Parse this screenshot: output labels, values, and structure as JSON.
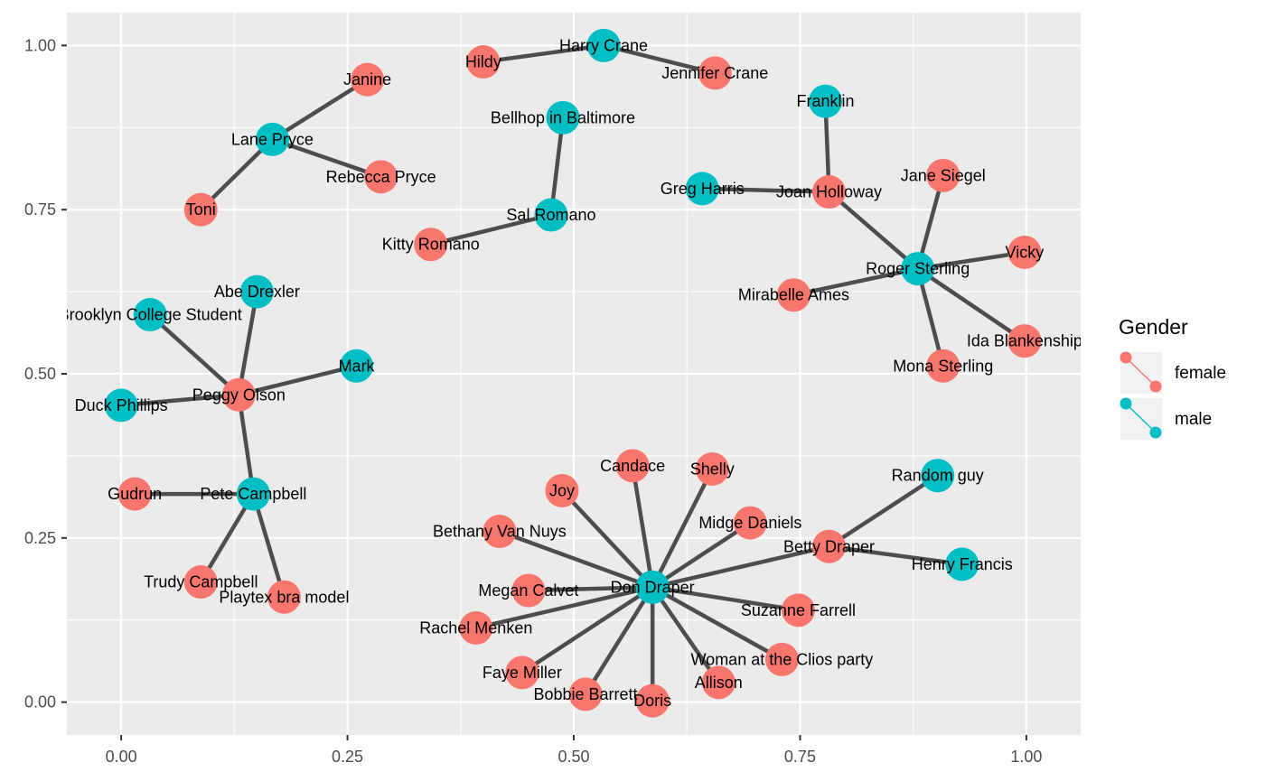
{
  "chart_data": {
    "type": "scatter",
    "subtype": "network",
    "title": "",
    "xlabel": "",
    "ylabel": "",
    "xlim": [
      -0.06,
      1.06
    ],
    "ylim": [
      -0.05,
      1.05
    ],
    "x_ticks": [
      0,
      0.25,
      0.5,
      0.75,
      1
    ],
    "x_tick_labels": [
      "0.00",
      "0.25",
      "0.50",
      "0.75",
      "1.00"
    ],
    "y_ticks": [
      0,
      0.25,
      0.5,
      0.75,
      1
    ],
    "y_tick_labels": [
      "0.00",
      "0.25",
      "0.50",
      "0.75",
      "1.00"
    ],
    "grid": true,
    "legend": {
      "title": "Gender",
      "position": "right",
      "entries": [
        {
          "label": "female",
          "color": "#F8766D"
        },
        {
          "label": "male",
          "color": "#00BFC4"
        }
      ]
    },
    "colors": {
      "female": "#F8766D",
      "male": "#00BFC4",
      "edge": "#4d4d4d",
      "panel": "#EBEBEB",
      "grid": "#FFFFFF"
    },
    "nodes": [
      {
        "name": "Harry Crane",
        "gender": "male",
        "x": 0.533,
        "y": 1.0
      },
      {
        "name": "Hildy",
        "gender": "female",
        "x": 0.4,
        "y": 0.975
      },
      {
        "name": "Jennifer Crane",
        "gender": "female",
        "x": 0.656,
        "y": 0.958
      },
      {
        "name": "Janine",
        "gender": "female",
        "x": 0.272,
        "y": 0.948
      },
      {
        "name": "Franklin",
        "gender": "male",
        "x": 0.778,
        "y": 0.915
      },
      {
        "name": "Bellhop in Baltimore",
        "gender": "male",
        "x": 0.488,
        "y": 0.89
      },
      {
        "name": "Lane Pryce",
        "gender": "male",
        "x": 0.167,
        "y": 0.857
      },
      {
        "name": "Rebecca Pryce",
        "gender": "female",
        "x": 0.287,
        "y": 0.8
      },
      {
        "name": "Jane Siegel",
        "gender": "female",
        "x": 0.908,
        "y": 0.802
      },
      {
        "name": "Greg Harris",
        "gender": "male",
        "x": 0.642,
        "y": 0.782
      },
      {
        "name": "Joan Holloway",
        "gender": "female",
        "x": 0.782,
        "y": 0.777
      },
      {
        "name": "Toni",
        "gender": "female",
        "x": 0.088,
        "y": 0.75
      },
      {
        "name": "Sal Romano",
        "gender": "male",
        "x": 0.475,
        "y": 0.742
      },
      {
        "name": "Kitty Romano",
        "gender": "female",
        "x": 0.342,
        "y": 0.697
      },
      {
        "name": "Vicky",
        "gender": "female",
        "x": 0.998,
        "y": 0.685
      },
      {
        "name": "Roger Sterling",
        "gender": "male",
        "x": 0.88,
        "y": 0.66
      },
      {
        "name": "Abe Drexler",
        "gender": "male",
        "x": 0.15,
        "y": 0.625
      },
      {
        "name": "Mirabelle Ames",
        "gender": "female",
        "x": 0.743,
        "y": 0.62
      },
      {
        "name": "Brooklyn College Student",
        "gender": "male",
        "x": 0.032,
        "y": 0.59
      },
      {
        "name": "Ida Blankenship",
        "gender": "female",
        "x": 0.998,
        "y": 0.55
      },
      {
        "name": "Mark",
        "gender": "male",
        "x": 0.26,
        "y": 0.512
      },
      {
        "name": "Mona Sterling",
        "gender": "female",
        "x": 0.908,
        "y": 0.512
      },
      {
        "name": "Peggy Olson",
        "gender": "female",
        "x": 0.13,
        "y": 0.468
      },
      {
        "name": "Duck Phillips",
        "gender": "male",
        "x": 0.0,
        "y": 0.452
      },
      {
        "name": "Candace",
        "gender": "female",
        "x": 0.565,
        "y": 0.36
      },
      {
        "name": "Shelly",
        "gender": "female",
        "x": 0.653,
        "y": 0.355
      },
      {
        "name": "Random guy",
        "gender": "male",
        "x": 0.902,
        "y": 0.345
      },
      {
        "name": "Joy",
        "gender": "female",
        "x": 0.487,
        "y": 0.322
      },
      {
        "name": "Gudrun",
        "gender": "female",
        "x": 0.015,
        "y": 0.317
      },
      {
        "name": "Pete Campbell",
        "gender": "male",
        "x": 0.146,
        "y": 0.317
      },
      {
        "name": "Midge Daniels",
        "gender": "female",
        "x": 0.695,
        "y": 0.273
      },
      {
        "name": "Bethany Van Nuys",
        "gender": "female",
        "x": 0.418,
        "y": 0.26
      },
      {
        "name": "Betty Draper",
        "gender": "female",
        "x": 0.782,
        "y": 0.237
      },
      {
        "name": "Henry Francis",
        "gender": "male",
        "x": 0.929,
        "y": 0.21
      },
      {
        "name": "Trudy Campbell",
        "gender": "female",
        "x": 0.088,
        "y": 0.183
      },
      {
        "name": "Don Draper",
        "gender": "male",
        "x": 0.587,
        "y": 0.175
      },
      {
        "name": "Megan Calvet",
        "gender": "female",
        "x": 0.45,
        "y": 0.17
      },
      {
        "name": "Playtex bra model",
        "gender": "female",
        "x": 0.18,
        "y": 0.16
      },
      {
        "name": "Suzanne Farrell",
        "gender": "female",
        "x": 0.748,
        "y": 0.14
      },
      {
        "name": "Rachel Menken",
        "gender": "female",
        "x": 0.392,
        "y": 0.113
      },
      {
        "name": "Woman at the Clios party",
        "gender": "female",
        "x": 0.73,
        "y": 0.065
      },
      {
        "name": "Faye Miller",
        "gender": "female",
        "x": 0.443,
        "y": 0.045
      },
      {
        "name": "Allison",
        "gender": "female",
        "x": 0.66,
        "y": 0.03
      },
      {
        "name": "Bobbie Barrett",
        "gender": "female",
        "x": 0.513,
        "y": 0.012
      },
      {
        "name": "Doris",
        "gender": "female",
        "x": 0.587,
        "y": 0.002
      }
    ],
    "edges": [
      [
        "Hildy",
        "Harry Crane"
      ],
      [
        "Harry Crane",
        "Jennifer Crane"
      ],
      [
        "Lane Pryce",
        "Janine"
      ],
      [
        "Lane Pryce",
        "Rebecca Pryce"
      ],
      [
        "Lane Pryce",
        "Toni"
      ],
      [
        "Bellhop in Baltimore",
        "Sal Romano"
      ],
      [
        "Sal Romano",
        "Kitty Romano"
      ],
      [
        "Franklin",
        "Joan Holloway"
      ],
      [
        "Greg Harris",
        "Joan Holloway"
      ],
      [
        "Joan Holloway",
        "Roger Sterling"
      ],
      [
        "Jane Siegel",
        "Roger Sterling"
      ],
      [
        "Vicky",
        "Roger Sterling"
      ],
      [
        "Mirabelle Ames",
        "Roger Sterling"
      ],
      [
        "Ida Blankenship",
        "Roger Sterling"
      ],
      [
        "Mona Sterling",
        "Roger Sterling"
      ],
      [
        "Abe Drexler",
        "Peggy Olson"
      ],
      [
        "Brooklyn College Student",
        "Peggy Olson"
      ],
      [
        "Mark",
        "Peggy Olson"
      ],
      [
        "Duck Phillips",
        "Peggy Olson"
      ],
      [
        "Peggy Olson",
        "Pete Campbell"
      ],
      [
        "Gudrun",
        "Pete Campbell"
      ],
      [
        "Trudy Campbell",
        "Pete Campbell"
      ],
      [
        "Playtex bra model",
        "Pete Campbell"
      ],
      [
        "Don Draper",
        "Candace"
      ],
      [
        "Don Draper",
        "Shelly"
      ],
      [
        "Don Draper",
        "Joy"
      ],
      [
        "Don Draper",
        "Midge Daniels"
      ],
      [
        "Don Draper",
        "Bethany Van Nuys"
      ],
      [
        "Don Draper",
        "Betty Draper"
      ],
      [
        "Don Draper",
        "Megan Calvet"
      ],
      [
        "Don Draper",
        "Suzanne Farrell"
      ],
      [
        "Don Draper",
        "Rachel Menken"
      ],
      [
        "Don Draper",
        "Woman at the Clios party"
      ],
      [
        "Don Draper",
        "Faye Miller"
      ],
      [
        "Don Draper",
        "Allison"
      ],
      [
        "Don Draper",
        "Bobbie Barrett"
      ],
      [
        "Don Draper",
        "Doris"
      ],
      [
        "Betty Draper",
        "Random guy"
      ],
      [
        "Betty Draper",
        "Henry Francis"
      ]
    ]
  }
}
